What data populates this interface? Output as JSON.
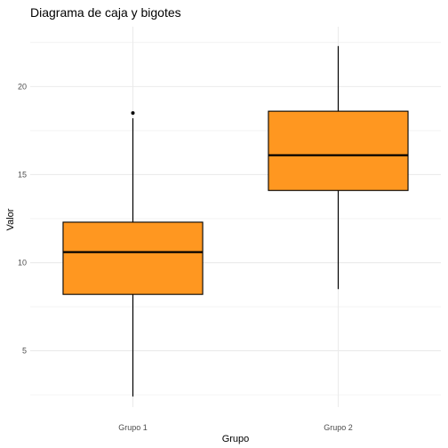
{
  "chart_data": {
    "type": "boxplot",
    "title": "Diagrama de caja y bigotes",
    "xlabel": "Grupo",
    "ylabel": "Valor",
    "ylim": [
      1.8,
      23.4
    ],
    "yticks": [
      5,
      10,
      15,
      20
    ],
    "grid": true,
    "colors": {
      "box_fill": "#ff9720",
      "line": "#000000",
      "grid": "#ebebeb"
    },
    "groups": [
      {
        "category": "Grupo 1",
        "whisker_low": 2.4,
        "q1": 8.2,
        "median": 10.6,
        "q3": 12.3,
        "whisker_high": 18.2,
        "outliers": [
          18.5
        ]
      },
      {
        "category": "Grupo 2",
        "whisker_low": 8.5,
        "q1": 14.1,
        "median": 16.1,
        "q3": 18.6,
        "whisker_high": 22.3,
        "outliers": []
      }
    ]
  }
}
